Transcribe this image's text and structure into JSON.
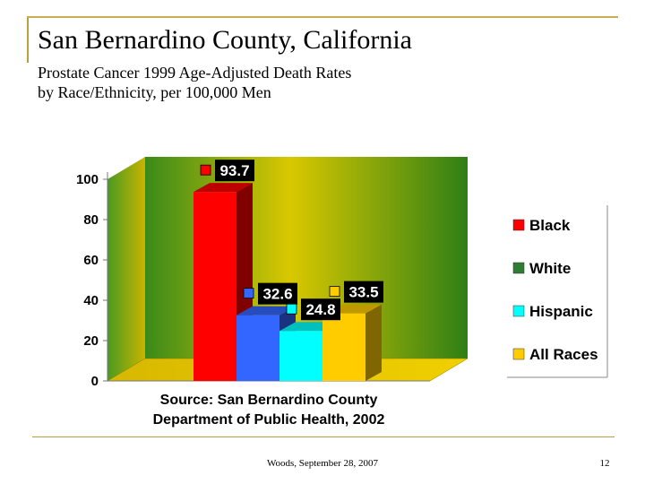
{
  "slide": {
    "title": "San Bernardino County, California",
    "subtitle_line1": "Prostate Cancer 1999 Age-Adjusted Death Rates",
    "subtitle_line2": "by Race/Ethnicity, per 100,000 Men",
    "source_line1": "Source: San Bernardino County",
    "source_line2": "Department of Public Health, 2002",
    "footer": "Woods, September 28, 2007",
    "page_number": "12"
  },
  "chart_data": {
    "type": "bar",
    "categories": [
      "Black",
      "White",
      "Hispanic",
      "All Races"
    ],
    "values": [
      93.7,
      32.6,
      24.8,
      33.5
    ],
    "value_labels": [
      "93.7",
      "32.6",
      "24.8",
      "33.5"
    ],
    "colors": [
      "#ff0000",
      "#3366ff",
      "#00ffff",
      "#ffcc00"
    ],
    "ylim": [
      0,
      100
    ],
    "yticks": [
      0,
      20,
      40,
      60,
      80,
      100
    ],
    "legend": [
      "Black",
      "White",
      "Hispanic",
      "All Races"
    ],
    "legend_colors": [
      "#ff0000",
      "#2e7d32",
      "#00ffff",
      "#ffcc00"
    ],
    "legend_position": "right",
    "style": "3d",
    "xlabel": "",
    "ylabel": ""
  }
}
